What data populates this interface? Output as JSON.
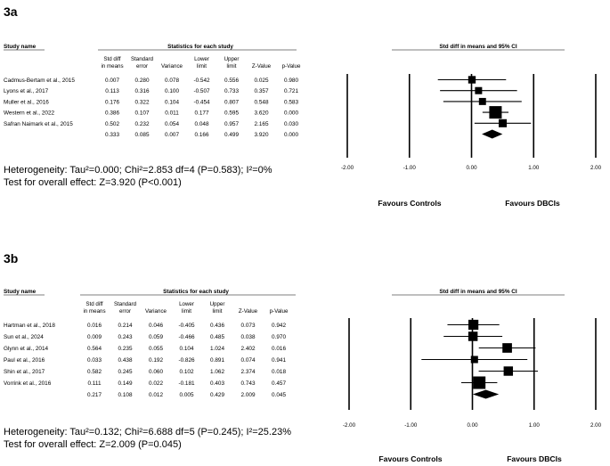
{
  "chart_data": [
    {
      "type": "forest",
      "panel_label": "3a",
      "headers": {
        "study_name": "Study name",
        "group_title": "Statistics for each study",
        "plot_title": "Std diff in means and 95% CI",
        "columns": [
          [
            "Std diff",
            "in means"
          ],
          [
            "Standard",
            "error"
          ],
          [
            "",
            "Variance"
          ],
          [
            "Lower",
            "limit"
          ],
          [
            "Upper",
            "limit"
          ],
          [
            "",
            "Z-Value"
          ],
          [
            "",
            "p-Value"
          ]
        ]
      },
      "studies": [
        {
          "name": "Cadmus-Bertam et al., 2015",
          "cells": [
            "0.007",
            "0.280",
            "0.078",
            "-0.542",
            "0.556",
            "0.025",
            "0.980"
          ],
          "smd": 0.007,
          "lower": -0.542,
          "upper": 0.556,
          "weight": 0.078
        },
        {
          "name": "Lyons et al., 2017",
          "cells": [
            "0.113",
            "0.316",
            "0.100",
            "-0.507",
            "0.733",
            "0.357",
            "0.721"
          ],
          "smd": 0.113,
          "lower": -0.507,
          "upper": 0.733,
          "weight": 0.1
        },
        {
          "name": "Muller et al., 2016",
          "cells": [
            "0.176",
            "0.322",
            "0.104",
            "-0.454",
            "0.807",
            "0.548",
            "0.583"
          ],
          "smd": 0.176,
          "lower": -0.454,
          "upper": 0.807,
          "weight": 0.104
        },
        {
          "name": "Western et al., 2022",
          "cells": [
            "0.386",
            "0.107",
            "0.011",
            "0.177",
            "0.595",
            "3.620",
            "0.000"
          ],
          "smd": 0.386,
          "lower": 0.177,
          "upper": 0.595,
          "weight": 0.011
        },
        {
          "name": "Safran Naimark et al., 2015",
          "cells": [
            "0.502",
            "0.232",
            "0.054",
            "0.048",
            "0.957",
            "2.165",
            "0.030"
          ],
          "smd": 0.502,
          "lower": 0.048,
          "upper": 0.957,
          "weight": 0.054
        }
      ],
      "summary": {
        "cells": [
          "0.333",
          "0.085",
          "0.007",
          "0.166",
          "0.499",
          "3.920",
          "0.000"
        ],
        "smd": 0.333,
        "lower": 0.166,
        "upper": 0.499
      },
      "x_ticks": [
        "-2.00",
        "-1.00",
        "0.00",
        "1.00",
        "2.00"
      ],
      "x_min": -2.0,
      "x_max": 2.0,
      "favours_left": "Favours Controls",
      "favours_right": "Favours DBCIs",
      "heterogeneity": "Heterogeneity: Tau²=0.000; Chi²=2.853 df=4 (P=0.583); I²=0%",
      "overall_effect": "Test for overall effect: Z=3.920 (P<0.001)"
    },
    {
      "type": "forest",
      "panel_label": "3b",
      "headers": {
        "study_name": "Study name",
        "group_title": "Statistics for each study",
        "plot_title": "Std diff in means and 95% CI",
        "columns": [
          [
            "Std diff",
            "in means"
          ],
          [
            "Standard",
            "error"
          ],
          [
            "",
            "Variance"
          ],
          [
            "Lower",
            "limit"
          ],
          [
            "Upper",
            "limit"
          ],
          [
            "",
            "Z-Value"
          ],
          [
            "",
            "p-Value"
          ]
        ]
      },
      "studies": [
        {
          "name": "Hartman et al., 2018",
          "cells": [
            "0.016",
            "0.214",
            "0.046",
            "-0.405",
            "0.436",
            "0.073",
            "0.942"
          ],
          "smd": 0.016,
          "lower": -0.405,
          "upper": 0.436,
          "weight": 0.046
        },
        {
          "name": "Sun et al., 2024",
          "cells": [
            "0.009",
            "0.243",
            "0.059",
            "-0.466",
            "0.485",
            "0.038",
            "0.970"
          ],
          "smd": 0.009,
          "lower": -0.466,
          "upper": 0.485,
          "weight": 0.059
        },
        {
          "name": "Glynn et al., 2014",
          "cells": [
            "0.564",
            "0.235",
            "0.055",
            "0.104",
            "1.024",
            "2.402",
            "0.016"
          ],
          "smd": 0.564,
          "lower": 0.104,
          "upper": 1.024,
          "weight": 0.055
        },
        {
          "name": "Paul et al., 2016",
          "cells": [
            "0.033",
            "0.438",
            "0.192",
            "-0.826",
            "0.891",
            "0.074",
            "0.941"
          ],
          "smd": 0.033,
          "lower": -0.826,
          "upper": 0.891,
          "weight": 0.192
        },
        {
          "name": "Shin et al., 2017",
          "cells": [
            "0.582",
            "0.245",
            "0.060",
            "0.102",
            "1.062",
            "2.374",
            "0.018"
          ],
          "smd": 0.582,
          "lower": 0.102,
          "upper": 1.062,
          "weight": 0.06
        },
        {
          "name": "Vorrink et al., 2016",
          "cells": [
            "0.111",
            "0.149",
            "0.022",
            "-0.181",
            "0.403",
            "0.743",
            "0.457"
          ],
          "smd": 0.111,
          "lower": -0.181,
          "upper": 0.403,
          "weight": 0.022
        }
      ],
      "summary": {
        "cells": [
          "0.217",
          "0.108",
          "0.012",
          "0.005",
          "0.429",
          "2.009",
          "0.045"
        ],
        "smd": 0.217,
        "lower": 0.005,
        "upper": 0.429
      },
      "x_ticks": [
        "-2.00",
        "-1.00",
        "0.00",
        "1.00",
        "2.00"
      ],
      "x_min": -2.0,
      "x_max": 2.0,
      "favours_left": "Favours Controls",
      "favours_right": "Favours DBCIs",
      "heterogeneity": "Heterogeneity: Tau²=0.132; Chi²=6.688 df=5 (P=0.245); I²=25.23%",
      "overall_effect": "Test for overall effect: Z=2.009 (P=0.045)"
    }
  ]
}
